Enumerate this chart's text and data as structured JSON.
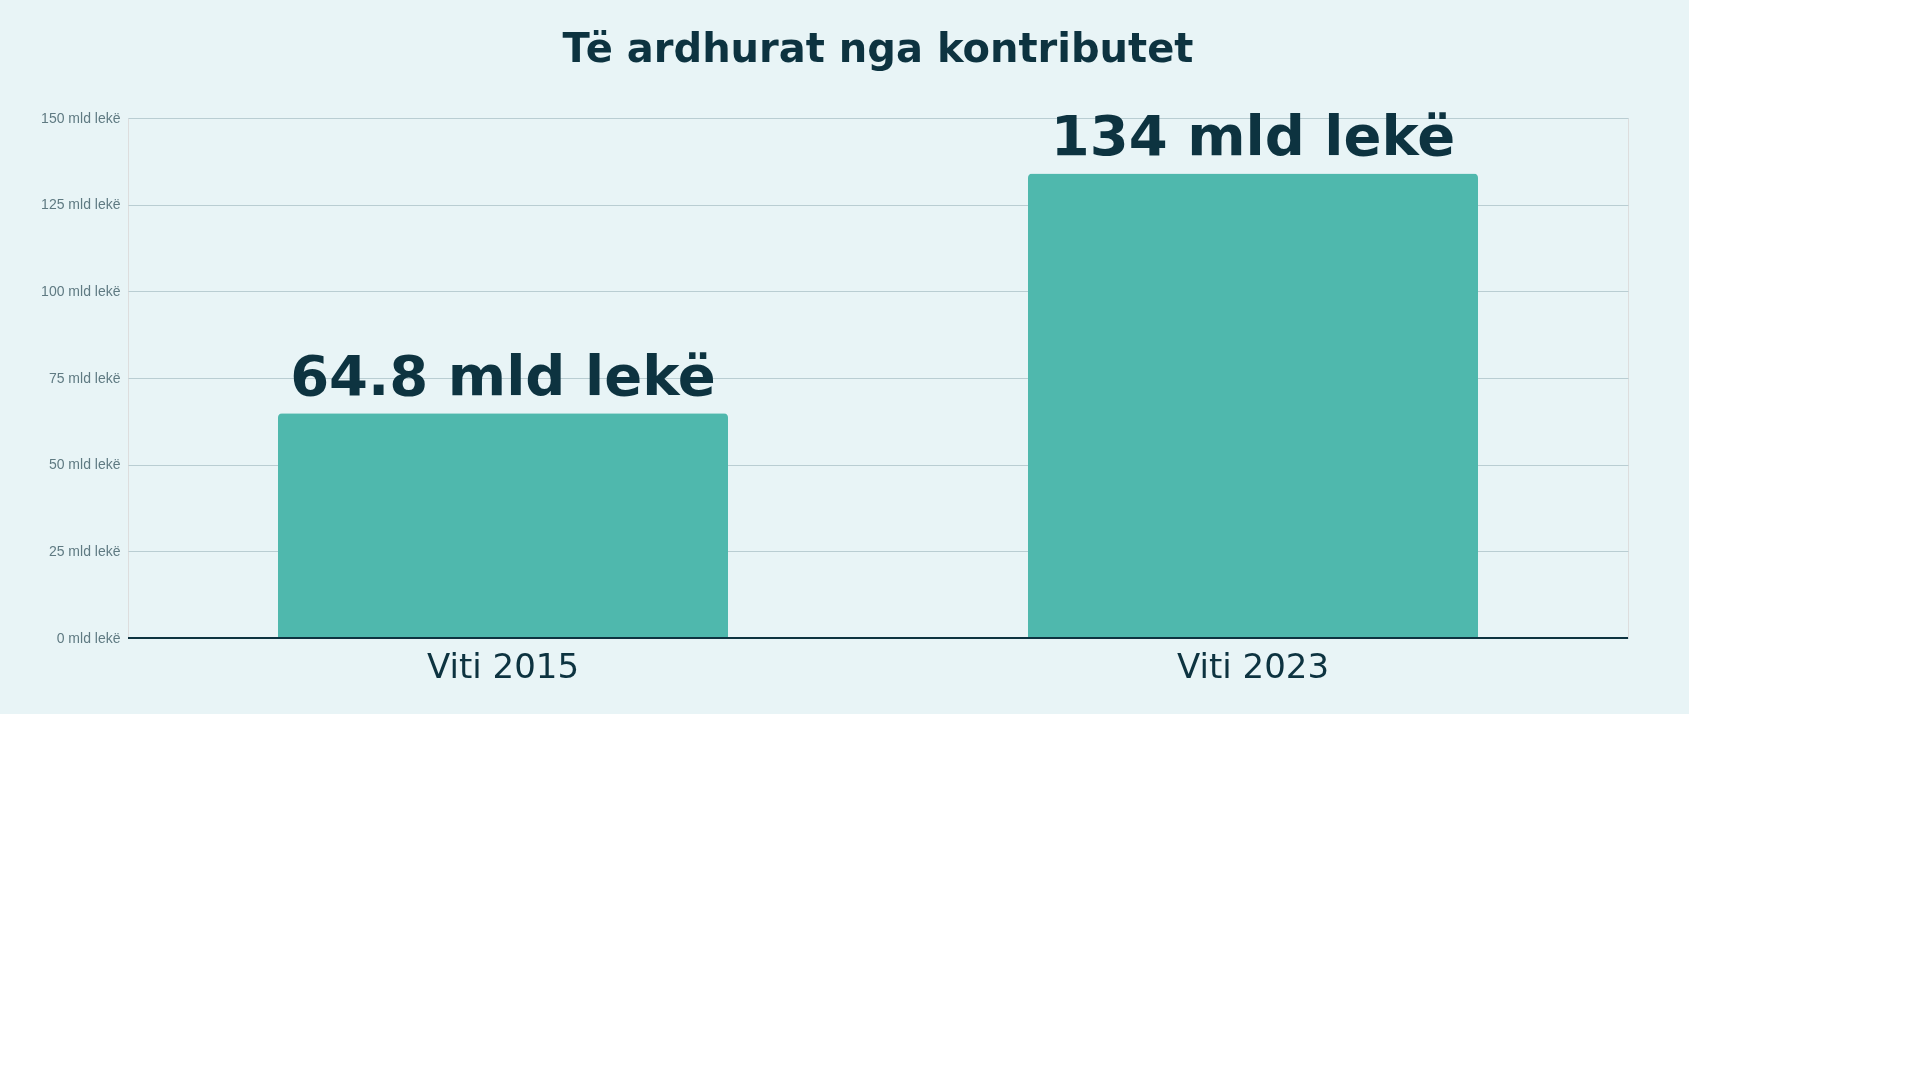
{
  "chart_data": {
    "type": "bar",
    "title": "Të ardhurat nga kontributet",
    "categories": [
      "Viti 2015",
      "Viti 2023"
    ],
    "values": [
      64.8,
      134
    ],
    "value_labels": [
      "64.8 mld lekë",
      "134 mld lekë"
    ],
    "color": "#4fb8ad",
    "ylim": [
      0,
      150
    ],
    "yticks": [
      {
        "value": 0,
        "label": "0 mld lekë"
      },
      {
        "value": 25,
        "label": "25 mld lekë"
      },
      {
        "value": 50,
        "label": "50 mld lekë"
      },
      {
        "value": 75,
        "label": "75 mld lekë"
      },
      {
        "value": 100,
        "label": "100 mld lekë"
      },
      {
        "value": 125,
        "label": "125 mld lekë"
      },
      {
        "value": 150,
        "label": "150 mld lekë"
      }
    ],
    "grid": "y"
  }
}
